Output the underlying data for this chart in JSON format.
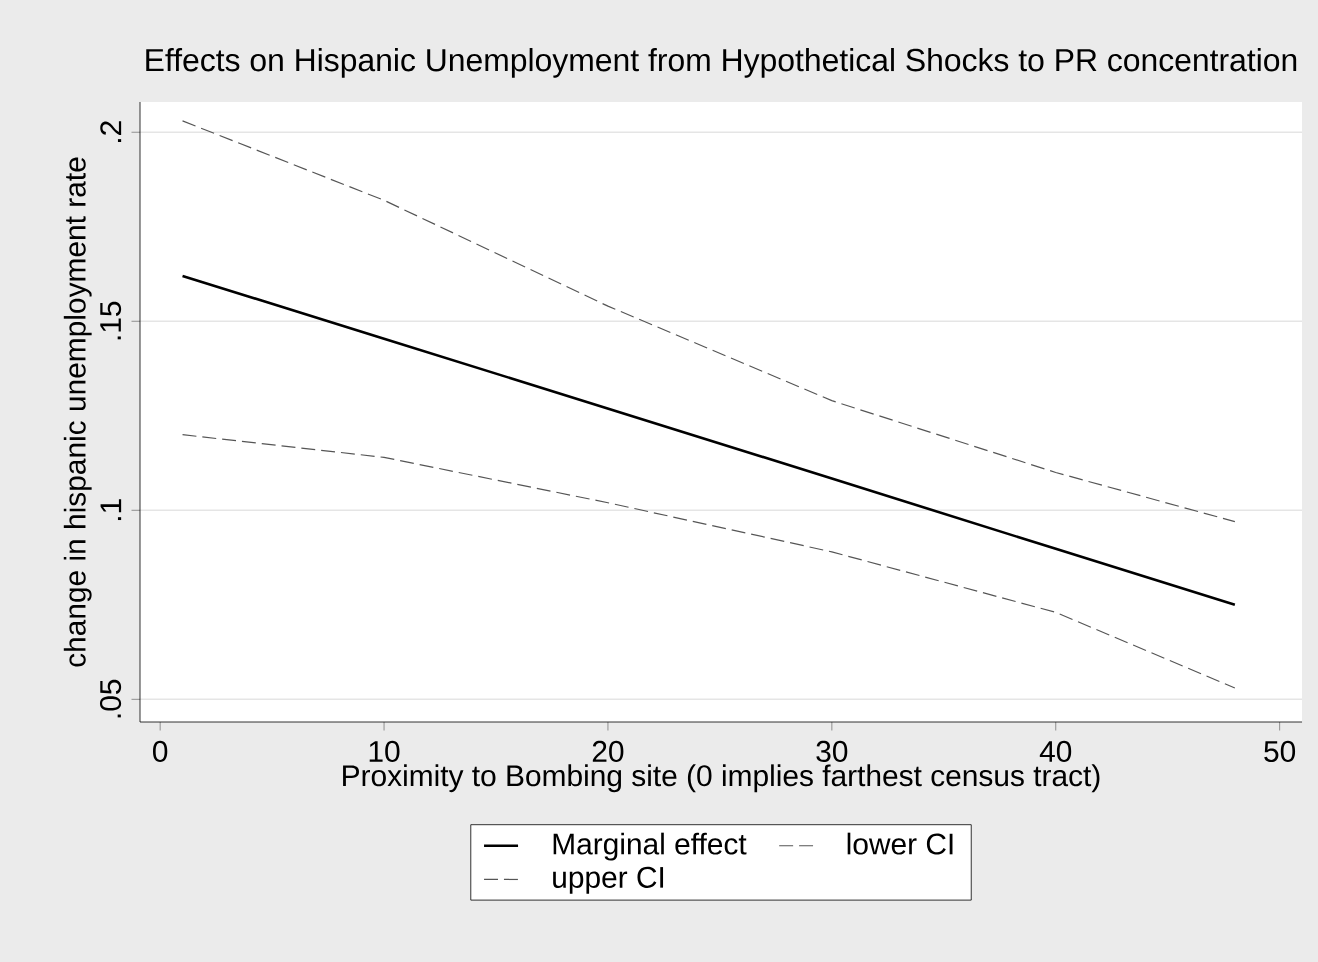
{
  "chart_data": {
    "type": "line",
    "title": "Effects on Hispanic Unemployment from Hypothetical Shocks to PR concentration",
    "xlabel": "Proximity to Bombing site (0 implies farthest census tract)",
    "ylabel": "change in hispanic unemployment rate",
    "xlim": [
      -0.9,
      51
    ],
    "ylim": [
      0.044,
      0.208
    ],
    "xticks": [
      0,
      10,
      20,
      30,
      40,
      50
    ],
    "yticks": [
      {
        "value": 0.05,
        "label": ".05"
      },
      {
        "value": 0.1,
        "label": ".1"
      },
      {
        "value": 0.15,
        "label": ".15"
      },
      {
        "value": 0.2,
        "label": ".2"
      }
    ],
    "grid": "y",
    "legend": "bottom",
    "marker": "none",
    "line_style": "solid",
    "series": [
      {
        "name": "Marginal effect",
        "color": "#000000",
        "x": [
          1,
          10,
          20,
          30,
          40,
          48
        ],
        "values": [
          0.162,
          0.1454,
          0.1269,
          0.1084,
          0.0898,
          0.075
        ]
      },
      {
        "name": "lower CI",
        "color": "#555555",
        "line_style": "dashed",
        "x": [
          1,
          10,
          20,
          30,
          40,
          48
        ],
        "values": [
          0.12,
          0.114,
          0.102,
          0.089,
          0.073,
          0.053
        ]
      },
      {
        "name": "upper CI",
        "color": "#555555",
        "line_style": "dashed",
        "x": [
          1,
          10,
          20,
          30,
          40,
          48
        ],
        "values": [
          0.203,
          0.182,
          0.154,
          0.129,
          0.11,
          0.097
        ]
      }
    ]
  }
}
